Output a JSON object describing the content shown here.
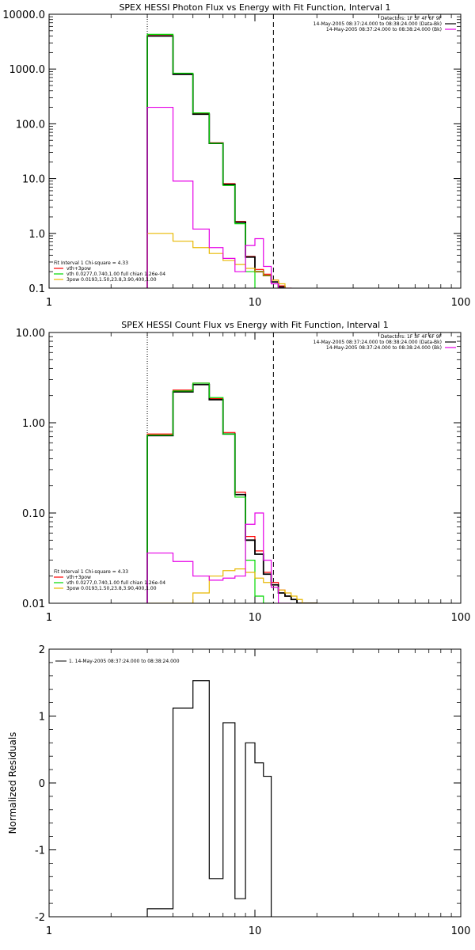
{
  "chart_data": [
    {
      "type": "line",
      "title": "SPEX HESSI Photon Flux vs Energy with Fit Function, Interval 1",
      "x_scale": "log",
      "y_scale": "log",
      "xlim": [
        1,
        100
      ],
      "ylim": [
        0.1,
        10000
      ],
      "x_ticks": [
        1,
        10,
        100
      ],
      "x_tick_labels": [
        "1",
        "10",
        "100"
      ],
      "y_ticks": [
        0.1,
        1,
        10,
        100,
        1000,
        10000
      ],
      "y_tick_labels": [
        "0.1",
        "1.0",
        "10.0",
        "100.0",
        "1000.0",
        "10000.0"
      ],
      "vlines": [
        {
          "x": 3,
          "style": "dotted"
        },
        {
          "x": 12.3,
          "style": "dashed"
        }
      ],
      "legend_top_right": [
        "Detectors: 1F 3F 4F 6F 9F",
        "14-May-2005 08:37:24.000 to 08:38:24.000 (Data-Bk)",
        "14-May-2005 08:37:24.000 to 08:38:24.000 (Bk)"
      ],
      "legend_bottom_left": [
        "Fit Interval 1   Chi-square = 4.33",
        "vth+3pow",
        "vth 0.0277,0.740,1.00  full chian 1.26e-04",
        "3pow 0.0193,1.50,23.8,3.90,400,1.00"
      ],
      "edges": [
        3,
        4,
        5,
        6,
        7,
        8,
        9,
        10,
        11,
        12,
        13,
        14,
        15
      ],
      "series": [
        {
          "name": "vth+3pow",
          "color": "#ff0000",
          "width": 1.2,
          "values": [
            4100,
            820,
            155,
            45,
            8.1,
            1.65,
            0.38,
            0.22,
            0.18,
            0.14,
            0.11,
            0.09
          ]
        },
        {
          "color": "#000000",
          "width": 1.8,
          "values": [
            4000,
            800,
            150,
            44,
            7.8,
            1.6,
            0.37,
            0.2,
            0.17,
            0.13,
            0.105,
            0.085
          ]
        },
        {
          "name": "vth 0.0277,0.740,1.00  full chian 1.26e-04",
          "color": "#00d800",
          "width": 1.2,
          "values": [
            4300,
            840,
            158,
            44,
            7.5,
            1.5,
            0.2
          ]
        },
        {
          "name": "3pow 0.0193,1.50,23.8,3.90,400,1.00",
          "color": "#e8b800",
          "width": 1.2,
          "values": [
            1.0,
            0.72,
            0.55,
            0.43,
            0.32,
            0.27,
            0.23,
            0.2,
            0.17,
            0.14,
            0.12,
            0.1
          ]
        },
        {
          "color": "#e600e6",
          "width": 1.2,
          "values": [
            200,
            9,
            1.2,
            0.55,
            0.35,
            0.2,
            0.6,
            0.8,
            0.25,
            0.12,
            0.1,
            0.1
          ]
        }
      ]
    },
    {
      "type": "line",
      "title": "SPEX HESSI Count Flux vs Energy with Fit Function, Interval 1",
      "x_scale": "log",
      "y_scale": "log",
      "xlim": [
        1,
        100
      ],
      "ylim": [
        0.01,
        10
      ],
      "x_ticks": [
        1,
        10,
        100
      ],
      "x_tick_labels": [
        "1",
        "10",
        "100"
      ],
      "y_ticks": [
        0.01,
        0.1,
        1,
        10
      ],
      "y_tick_labels": [
        "0.01",
        "0.10",
        "1.00",
        "10.00"
      ],
      "vlines": [
        {
          "x": 3,
          "style": "dotted"
        },
        {
          "x": 12.3,
          "style": "dashed"
        }
      ],
      "legend_top_right": [
        "Detectors: 1F 3F 4F 6F 9F",
        "14-May-2005 08:37:24.000 to 08:38:24.000 (Data-Bk)",
        "14-May-2005 08:37:24.000 to 08:38:24.000 (Bk)"
      ],
      "legend_bottom_left": [
        "Fit Interval 1   Chi-square = 4.33",
        "vth+3pow",
        "vth 0.0277,0.740,1.00  full chian 1.26e-04",
        "3pow 0.0193,1.50,23.8,3.90,400,1.00"
      ],
      "edges": [
        3,
        4,
        5,
        6,
        7,
        8,
        9,
        10,
        11,
        12,
        13,
        14,
        15,
        16,
        17,
        18,
        19,
        20
      ],
      "series": [
        {
          "name": "vth+3pow",
          "color": "#ff0000",
          "width": 1.2,
          "values": [
            0.75,
            2.3,
            2.75,
            1.85,
            0.78,
            0.17,
            0.055,
            0.038,
            0.022,
            0.017,
            0.014,
            0.012,
            0.011,
            0.01,
            0.01,
            0.01,
            0.01
          ]
        },
        {
          "color": "#000000",
          "width": 1.8,
          "values": [
            0.72,
            2.2,
            2.65,
            1.8,
            0.75,
            0.16,
            0.05,
            0.035,
            0.021,
            0.016,
            0.013,
            0.012,
            0.011,
            0.01,
            0.01,
            0.01,
            0.01
          ]
        },
        {
          "name": "vth 0.0277,0.740,1.00  full chian 1.26e-04",
          "color": "#00d800",
          "width": 1.2,
          "values": [
            0.73,
            2.25,
            2.75,
            1.9,
            0.75,
            0.15,
            0.03,
            0.012,
            0.01
          ]
        },
        {
          "name": "3pow 0.0193,1.50,23.8,3.90,400,1.00",
          "color": "#e8b800",
          "width": 1.2,
          "values": [
            0.01,
            0.01,
            0.013,
            0.02,
            0.023,
            0.024,
            0.022,
            0.019,
            0.017,
            0.015,
            0.014,
            0.013,
            0.012,
            0.011,
            0.01,
            0.01,
            0.01
          ]
        },
        {
          "color": "#e600e6",
          "width": 1.2,
          "values": [
            0.036,
            0.029,
            0.02,
            0.018,
            0.019,
            0.02,
            0.075,
            0.1,
            0.03,
            0.015,
            0.01,
            0.01
          ]
        }
      ]
    },
    {
      "type": "line",
      "ylabel": "Normalized Residuals",
      "x_scale": "log",
      "y_scale": "linear",
      "xlim": [
        1,
        100
      ],
      "ylim": [
        -2,
        2
      ],
      "x_ticks": [
        1,
        10,
        100
      ],
      "x_tick_labels": [
        "1",
        "10",
        "100"
      ],
      "y_ticks": [
        -2,
        -1,
        0,
        1,
        2
      ],
      "y_tick_labels": [
        "-2",
        "-1",
        "0",
        "1",
        "2"
      ],
      "legend_top_left": [
        "1. 14-May-2005 08:37:24.000 to 08:38:24.000"
      ],
      "edges": [
        3,
        4,
        5,
        6,
        7,
        8,
        9,
        10,
        11,
        12
      ],
      "series": [
        {
          "color": "#000000",
          "width": 1.2,
          "values": [
            -1.88,
            1.12,
            1.53,
            -1.43,
            0.9,
            -1.73,
            0.6,
            0.3,
            0.1
          ]
        }
      ]
    }
  ]
}
